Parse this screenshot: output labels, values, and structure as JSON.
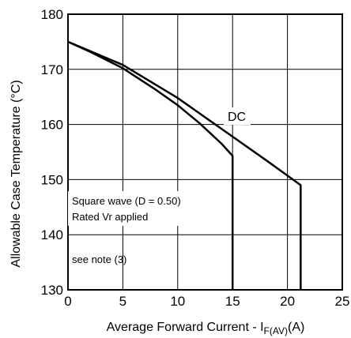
{
  "chart_data": {
    "type": "line",
    "xlabel_main": "Average Forward Current - I",
    "xlabel_sub": "F(AV)",
    "xlabel_unit": "(A)",
    "ylabel": "Allowable Case Temperature (°C)",
    "xlim": [
      0,
      25
    ],
    "ylim": [
      130,
      180
    ],
    "xticks": [
      "0",
      "5",
      "10",
      "15",
      "20",
      "25"
    ],
    "yticks": [
      "130",
      "140",
      "150",
      "160",
      "170",
      "180"
    ],
    "grid": true,
    "series": [
      {
        "name": "",
        "x": [
          0,
          2,
          5,
          8,
          10,
          12,
          14,
          15,
          15
        ],
        "y": [
          175,
          173.2,
          170.2,
          166.3,
          163.5,
          160.2,
          156.5,
          154.3,
          130
        ]
      },
      {
        "name": "DC",
        "x": [
          0,
          5,
          10,
          15,
          18,
          21.2,
          21.2
        ],
        "y": [
          175,
          170.8,
          164.8,
          157.8,
          153.6,
          149,
          130
        ]
      }
    ],
    "annotations": [
      {
        "text": "DC"
      },
      {
        "text": "Square wave (D = 0.50)"
      },
      {
        "text": "Rated Vr  applied"
      },
      {
        "text": "see note (3)"
      }
    ]
  }
}
